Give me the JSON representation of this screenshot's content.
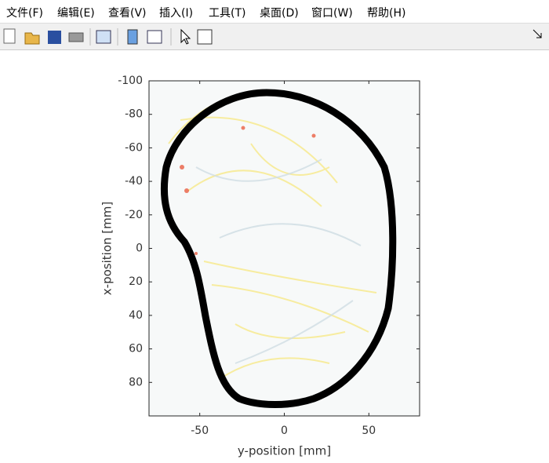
{
  "menu": [
    "文件(F)",
    "编辑(E)",
    "查看(V)",
    "插入(I)",
    "工具(T)",
    "桌面(D)",
    "窗口(W)",
    "帮助(H)"
  ],
  "chart_data": {
    "type": "image",
    "xlabel": "y-position [mm]",
    "ylabel": "x-position [mm]",
    "xlim": [
      -80,
      80
    ],
    "ylim": [
      -100,
      100
    ],
    "y_reversed": true,
    "xticks": [
      -50,
      0,
      50
    ],
    "yticks": [
      -100,
      -80,
      -60,
      -40,
      -20,
      0,
      20,
      40,
      60,
      80
    ]
  }
}
